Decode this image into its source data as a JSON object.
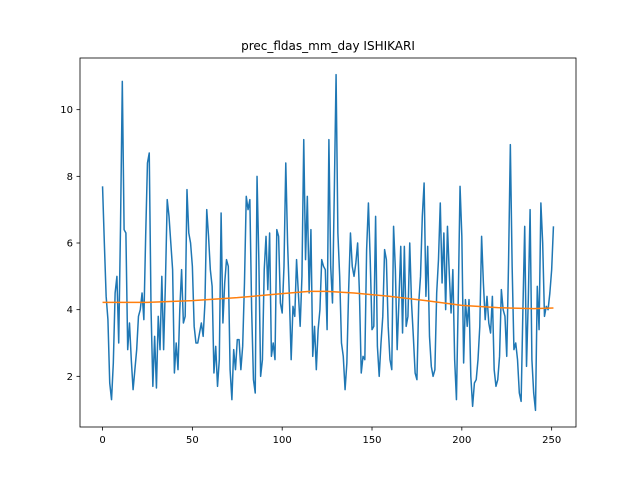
{
  "chart_data": {
    "type": "line",
    "title": "prec_fldas_mm_day ISHIKARI",
    "x": [
      0,
      1,
      2,
      3,
      4,
      5,
      6,
      7,
      8,
      9,
      10,
      11,
      12,
      13,
      14,
      15,
      16,
      17,
      18,
      19,
      20,
      21,
      22,
      23,
      24,
      25,
      26,
      27,
      28,
      29,
      30,
      31,
      32,
      33,
      34,
      35,
      36,
      37,
      38,
      39,
      40,
      41,
      42,
      43,
      44,
      45,
      46,
      47,
      48,
      49,
      50,
      51,
      52,
      53,
      54,
      55,
      56,
      57,
      58,
      59,
      60,
      61,
      62,
      63,
      64,
      65,
      66,
      67,
      68,
      69,
      70,
      71,
      72,
      73,
      74,
      75,
      76,
      77,
      78,
      79,
      80,
      81,
      82,
      83,
      84,
      85,
      86,
      87,
      88,
      89,
      90,
      91,
      92,
      93,
      94,
      95,
      96,
      97,
      98,
      99,
      100,
      101,
      102,
      103,
      104,
      105,
      106,
      107,
      108,
      109,
      110,
      111,
      112,
      113,
      114,
      115,
      116,
      117,
      118,
      119,
      120,
      121,
      122,
      123,
      124,
      125,
      126,
      127,
      128,
      129,
      130,
      131,
      132,
      133,
      134,
      135,
      136,
      137,
      138,
      139,
      140,
      141,
      142,
      143,
      144,
      145,
      146,
      147,
      148,
      149,
      150,
      151,
      152,
      153,
      154,
      155,
      156,
      157,
      158,
      159,
      160,
      161,
      162,
      163,
      164,
      165,
      166,
      167,
      168,
      169,
      170,
      171,
      172,
      173,
      174,
      175,
      176,
      177,
      178,
      179,
      180,
      181,
      182,
      183,
      184,
      185,
      186,
      187,
      188,
      189,
      190,
      191,
      192,
      193,
      194,
      195,
      196,
      197,
      198,
      199,
      200,
      201,
      202,
      203,
      204,
      205,
      206,
      207,
      208,
      209,
      210,
      211,
      212,
      213,
      214,
      215,
      216,
      217,
      218,
      219,
      220,
      221,
      222,
      223,
      224,
      225,
      226,
      227,
      228,
      229,
      230,
      231,
      232,
      233,
      234,
      235,
      236,
      237,
      238,
      239,
      240,
      241,
      242,
      243,
      244,
      245,
      246,
      247,
      248,
      249,
      250,
      251
    ],
    "series": [
      {
        "color": "#1f77b4",
        "values": [
          7.7,
          6.0,
          4.4,
          3.7,
          1.8,
          1.3,
          2.4,
          4.5,
          5.0,
          3.0,
          6.5,
          10.85,
          6.4,
          6.3,
          2.8,
          3.6,
          2.5,
          1.6,
          2.2,
          2.8,
          3.8,
          4.0,
          4.5,
          3.7,
          6.2,
          8.4,
          8.7,
          4.0,
          1.7,
          3.2,
          1.65,
          3.8,
          2.8,
          5.0,
          2.8,
          4.8,
          7.3,
          6.8,
          6.0,
          5.2,
          2.1,
          3.0,
          2.2,
          4.0,
          5.2,
          3.6,
          3.8,
          7.6,
          6.3,
          6.0,
          5.3,
          3.5,
          3.0,
          3.0,
          3.3,
          3.6,
          3.2,
          4.2,
          7.0,
          6.2,
          5.2,
          4.7,
          2.1,
          2.9,
          1.7,
          2.5,
          6.9,
          3.6,
          4.8,
          5.5,
          5.3,
          2.2,
          1.3,
          2.8,
          2.2,
          3.1,
          3.1,
          2.2,
          2.9,
          4.8,
          7.4,
          7.0,
          7.3,
          4.0,
          1.9,
          1.5,
          8.0,
          5.5,
          2.0,
          2.5,
          5.2,
          6.2,
          4.6,
          6.3,
          2.6,
          3.0,
          2.5,
          6.4,
          6.2,
          4.2,
          3.9,
          5.3,
          8.4,
          6.0,
          4.4,
          2.5,
          4.1,
          3.8,
          5.5,
          4.5,
          3.5,
          5.0,
          9.1,
          5.5,
          7.4,
          4.5,
          6.4,
          2.6,
          3.5,
          2.2,
          3.4,
          4.0,
          5.5,
          5.3,
          5.2,
          3.4,
          9.1,
          5.3,
          4.2,
          7.5,
          11.05,
          6.3,
          5.0,
          3.0,
          2.6,
          1.6,
          2.4,
          4.6,
          6.3,
          5.3,
          5.0,
          5.4,
          6.0,
          4.5,
          2.1,
          2.6,
          2.5,
          5.8,
          7.2,
          5.5,
          3.4,
          3.5,
          6.8,
          2.9,
          2.0,
          3.0,
          3.8,
          5.8,
          5.5,
          3.5,
          2.5,
          2.2,
          6.5,
          5.2,
          2.8,
          4.3,
          5.9,
          3.3,
          5.9,
          3.5,
          3.8,
          6.0,
          4.2,
          3.2,
          2.1,
          1.9,
          4.2,
          5.0,
          6.8,
          7.8,
          4.4,
          5.9,
          3.2,
          2.3,
          2.0,
          2.2,
          4.5,
          5.5,
          7.2,
          4.8,
          6.3,
          4.0,
          6.5,
          5.1,
          3.9,
          5.2,
          2.5,
          1.3,
          4.3,
          7.7,
          6.2,
          2.4,
          4.3,
          3.5,
          4.3,
          2.0,
          1.1,
          1.8,
          1.9,
          2.5,
          3.5,
          6.2,
          4.8,
          3.7,
          4.4,
          3.6,
          3.3,
          4.4,
          2.2,
          1.7,
          1.9,
          2.6,
          4.6,
          4.0,
          3.8,
          2.6,
          5.4,
          8.95,
          5.3,
          2.8,
          3.0,
          2.5,
          1.5,
          1.25,
          4.0,
          6.5,
          2.3,
          4.3,
          7.0,
          2.5,
          1.5,
          0.98,
          4.7,
          3.4,
          7.2,
          6.0,
          3.8,
          4.1,
          4.0,
          4.5,
          5.2,
          6.5
        ]
      },
      {
        "color": "#ff7f0e",
        "x": [
          0,
          25,
          50,
          75,
          100,
          115,
          125,
          140,
          160,
          180,
          200,
          220,
          240,
          251
        ],
        "values": [
          4.22,
          4.22,
          4.27,
          4.36,
          4.48,
          4.55,
          4.55,
          4.5,
          4.4,
          4.27,
          4.13,
          4.06,
          4.03,
          4.05
        ]
      }
    ],
    "xlim": [
      -12.55,
      263.55
    ],
    "ylim": [
      0.48,
      11.55
    ],
    "xticks": [
      0,
      50,
      100,
      150,
      200,
      250
    ],
    "yticks": [
      2,
      4,
      6,
      8,
      10
    ]
  }
}
